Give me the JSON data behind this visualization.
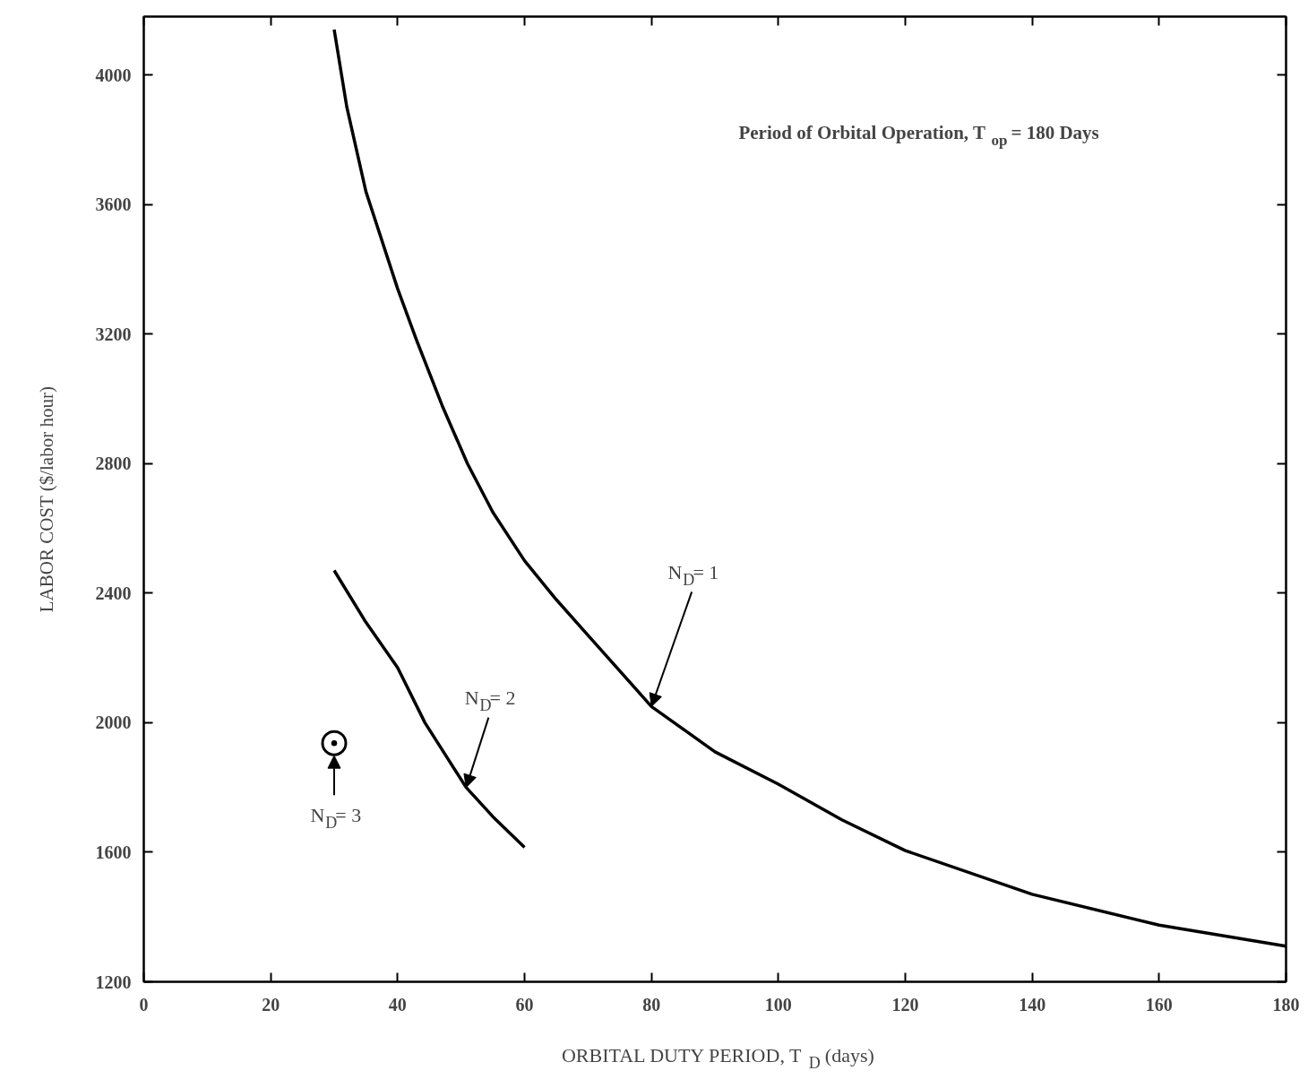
{
  "chart_data": {
    "type": "line",
    "xlabel": "ORBITAL DUTY PERIOD,  T$_{D}$ (days)",
    "ylabel": "LABOR COST ($/labor hour)",
    "xlim": [
      0,
      180
    ],
    "ylim": [
      1200,
      4180
    ],
    "xticks": [
      0,
      20,
      40,
      60,
      80,
      100,
      120,
      140,
      160,
      180
    ],
    "yticks": [
      1200,
      1600,
      2000,
      2400,
      2800,
      3200,
      3600,
      4000
    ],
    "grid": false,
    "series": [
      {
        "color": "#000000",
        "line_style": "solid",
        "x": [
          30,
          32,
          35,
          40,
          43,
          47,
          51,
          55,
          60,
          65,
          70,
          80,
          90,
          100,
          110,
          120,
          140,
          160,
          180
        ],
        "values": [
          4140,
          3900,
          3640,
          3340,
          3180,
          2980,
          2800,
          2650,
          2500,
          2380,
          2270,
          2050,
          1910,
          1810,
          1700,
          1605,
          1470,
          1375,
          1310
        ]
      },
      {
        "color": "#000000",
        "line_style": "solid",
        "x": [
          30,
          35,
          40,
          44.3,
          50.8,
          55,
          60
        ],
        "values": [
          2470,
          2310,
          2170,
          2000,
          1800,
          1710,
          1615
        ]
      },
      {
        "type": "scatter",
        "marker": "circle",
        "color": "#000000",
        "x": [
          30
        ],
        "values": [
          1937
        ]
      }
    ],
    "annotations": [
      "Period of Orbital Operation,  T$_{op}$ = 180 Days",
      {
        "text": "N$_{D}$= 1",
        "x": 80,
        "y": 2050
      },
      {
        "text": "N$_{D}$= 2",
        "x": 50.8,
        "y": 1800
      },
      "N$_{D}$= 3"
    ]
  }
}
